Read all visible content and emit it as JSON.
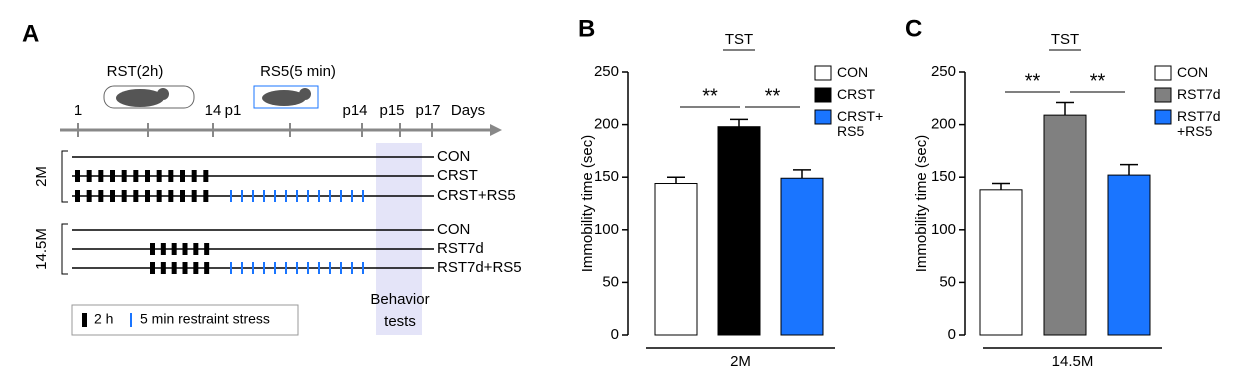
{
  "diagram": {
    "label": "A",
    "protocols": [
      "RST(2h)",
      "RS5(5 min)"
    ],
    "timeline": {
      "ticks": [
        "1",
        "14",
        "p1",
        "p14",
        "p15",
        "p17"
      ],
      "unit": "Days"
    },
    "groups": [
      {
        "name": "2M",
        "rows": [
          "CON",
          "CRST",
          "CRST+RS5"
        ]
      },
      {
        "name": "14.5M",
        "rows": [
          "CON",
          "RST7d",
          "RST7d+RS5"
        ]
      }
    ],
    "shaded_label": [
      "Behavior",
      "tests"
    ],
    "legend": [
      "2 h",
      "5 min restraint stress"
    ]
  },
  "chart_data": [
    {
      "type": "bar",
      "panel": "B",
      "title": "TST",
      "y_label": "Immobility time (sec)",
      "x_label": "2M",
      "categories": [
        "CON",
        "CRST",
        "CRST+ RS5"
      ],
      "values": [
        144,
        198,
        149
      ],
      "errors": [
        6,
        7,
        8
      ],
      "colors": [
        "#ffffff",
        "#000000",
        "#1a75ff"
      ],
      "ylim": [
        0,
        250
      ],
      "yticks": [
        0,
        50,
        100,
        150,
        200,
        250
      ],
      "annotations": [
        "**",
        "**"
      ]
    },
    {
      "type": "bar",
      "panel": "C",
      "title": "TST",
      "y_label": "Immobility time (sec)",
      "x_label": "14.5M",
      "categories": [
        "CON",
        "RST7d",
        "RST7d +RS5"
      ],
      "values": [
        138,
        209,
        152
      ],
      "errors": [
        6,
        12,
        10
      ],
      "colors": [
        "#ffffff",
        "#808080",
        "#1a75ff"
      ],
      "ylim": [
        0,
        250
      ],
      "yticks": [
        0,
        50,
        100,
        150,
        200,
        250
      ],
      "annotations": [
        "**",
        "**"
      ]
    }
  ]
}
